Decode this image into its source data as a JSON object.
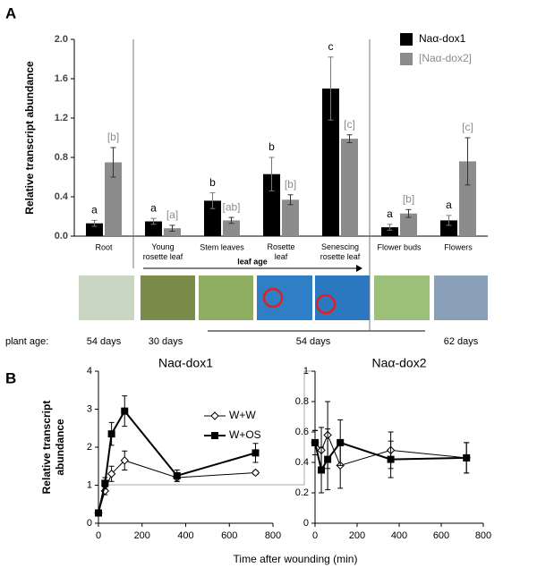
{
  "panel_labels": [
    "A",
    "B"
  ],
  "plant_age": {
    "label": "plant age:",
    "values": [
      "54 days",
      "30 days",
      "54 days",
      "62 days"
    ]
  },
  "chart_data": [
    {
      "type": "bar",
      "ylabel": "Relative transcript abundance",
      "annotation": "leaf age",
      "categories": [
        "Root",
        "Young rosette leaf",
        "Stem leaves",
        "Rosette leaf",
        "Senescing rosette leaf",
        "Flower buds",
        "Flowers"
      ],
      "series": [
        {
          "name": "Naα-dox1",
          "color": "#000000",
          "values": [
            0.13,
            0.15,
            0.36,
            0.63,
            1.5,
            0.09,
            0.16
          ],
          "errors": [
            0.03,
            0.03,
            0.08,
            0.17,
            0.32,
            0.03,
            0.05
          ],
          "labels": [
            "a",
            "a",
            "b",
            "b",
            "c",
            "a",
            "a"
          ]
        },
        {
          "name": "[Naα-dox2]",
          "color": "#8c8c8c",
          "values": [
            0.75,
            0.08,
            0.16,
            0.37,
            0.99,
            0.23,
            0.76
          ],
          "errors": [
            0.15,
            0.03,
            0.03,
            0.05,
            0.04,
            0.04,
            0.24
          ],
          "labels": [
            "[b]",
            "[a]",
            "[ab]",
            "[b]",
            "[c]",
            "[b]",
            "[c]"
          ]
        }
      ],
      "ylim": [
        0,
        2
      ],
      "yticks": [
        {
          "value": 0,
          "label": "0.0"
        },
        0.4,
        0.8,
        1.2,
        1.6,
        {
          "value": 2,
          "label": "2.0"
        }
      ]
    },
    {
      "type": "line",
      "title": "Naα-dox1",
      "ylabel": "Relative transcript abundance",
      "xlabel": "Time after wounding (min)",
      "x": [
        0,
        30,
        60,
        120,
        360,
        720
      ],
      "series": [
        {
          "name": "W+W",
          "color": "#000000",
          "marker": "diamond",
          "filled": false,
          "values": [
            0.27,
            0.85,
            1.3,
            1.65,
            1.2,
            1.33
          ],
          "errors": [
            0.05,
            0.1,
            0.2,
            0.25,
            0.1,
            0.05
          ]
        },
        {
          "name": "W+OS",
          "color": "#000000",
          "marker": "square",
          "filled": true,
          "values": [
            0.27,
            1.05,
            2.35,
            2.95,
            1.25,
            1.85
          ],
          "errors": [
            0.05,
            0.15,
            0.3,
            0.4,
            0.15,
            0.25
          ]
        }
      ],
      "xlim": [
        0,
        800
      ],
      "xticks": [
        0,
        200,
        400,
        600,
        800
      ],
      "ylim": [
        0,
        4
      ],
      "yticks": [
        0,
        1,
        2,
        3,
        4
      ]
    },
    {
      "type": "line",
      "title": "Naα-dox2",
      "x": [
        0,
        30,
        60,
        120,
        360,
        720
      ],
      "series": [
        {
          "color": "#000000",
          "marker": "diamond",
          "filled": false,
          "values": [
            0.53,
            0.48,
            0.58,
            0.38,
            0.48,
            0.43
          ],
          "errors": [
            0.08,
            0.15,
            0.22,
            0.15,
            0.12,
            0.1
          ]
        },
        {
          "color": "#000000",
          "marker": "square",
          "filled": true,
          "values": [
            0.53,
            0.35,
            0.42,
            0.53,
            0.42,
            0.43
          ],
          "errors": [
            0.08,
            0.15,
            0.2,
            0.15,
            0.12,
            0.1
          ]
        }
      ],
      "xlim": [
        0,
        800
      ],
      "xticks": [
        0,
        200,
        400,
        600,
        800
      ],
      "ylim": [
        0,
        1
      ],
      "yticks": [
        0,
        0.2,
        0.4,
        0.6,
        0.8,
        1
      ]
    }
  ]
}
